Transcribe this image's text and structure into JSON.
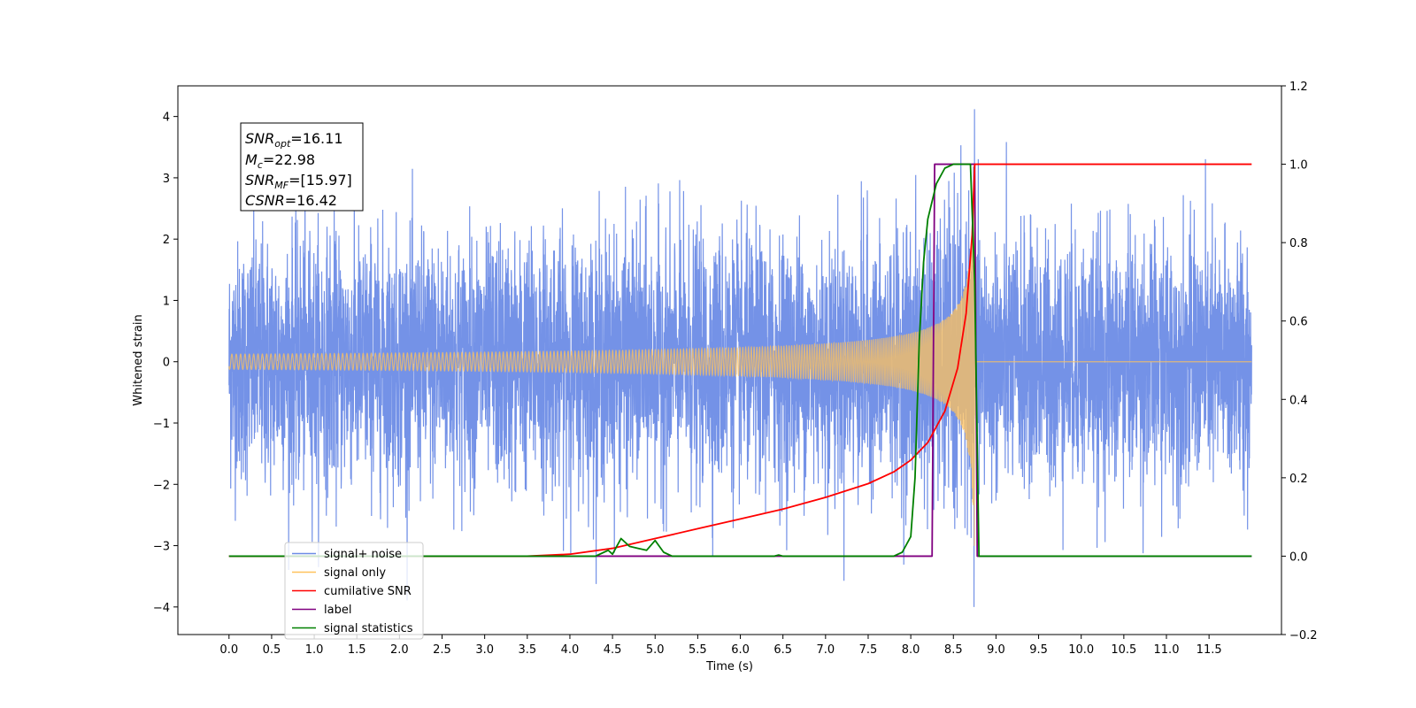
{
  "chart_data": {
    "type": "line",
    "xlabel": "Time (s)",
    "ylabel": "Whitened strain",
    "xlim": [
      -0.6,
      12.35
    ],
    "ylim_left": [
      -4.45,
      4.5
    ],
    "ylim_right": [
      -0.2,
      1.2
    ],
    "x_ticks": [
      0.0,
      0.5,
      1.0,
      1.5,
      2.0,
      2.5,
      3.0,
      3.5,
      4.0,
      4.5,
      5.0,
      5.5,
      6.0,
      6.5,
      7.0,
      7.5,
      8.0,
      8.5,
      9.0,
      9.5,
      10.0,
      10.5,
      11.0,
      11.5
    ],
    "x_tick_labels": [
      "0.0",
      "0.5",
      "1.0",
      "1.5",
      "2.0",
      "2.5",
      "3.0",
      "3.5",
      "4.0",
      "4.5",
      "5.0",
      "5.5",
      "6.0",
      "6.5",
      "7.0",
      "7.5",
      "8.0",
      "8.5",
      "9.0",
      "9.5",
      "10.0",
      "10.5",
      "11.0",
      "11.5"
    ],
    "y_left_ticks": [
      -4,
      -3,
      -2,
      -1,
      0,
      1,
      2,
      3,
      4
    ],
    "y_left_tick_labels": [
      "−4",
      "−3",
      "−2",
      "−1",
      "0",
      "1",
      "2",
      "3",
      "4"
    ],
    "y_right_ticks": [
      -0.2,
      0.0,
      0.2,
      0.4,
      0.6,
      0.8,
      1.0,
      1.2
    ],
    "y_right_tick_labels": [
      "−0.2",
      "0.0",
      "0.2",
      "0.4",
      "0.6",
      "0.8",
      "1.0",
      "1.2"
    ],
    "legend_position": "lower-left",
    "series": [
      {
        "name": "signal+ noise",
        "axis": "left",
        "color": "#6d8ce6",
        "x_range": [
          0.0,
          12.0
        ],
        "noise_std": 1.0,
        "y_extremes": [
          -4.0,
          4.12
        ]
      },
      {
        "name": "signal only",
        "axis": "left",
        "color": "#ffc25c",
        "x_range": [
          0.0,
          12.0
        ],
        "merger_time": 8.75,
        "peak_amplitude": 3.5
      },
      {
        "name": "cumilative SNR",
        "axis": "right",
        "color": "#ff0000",
        "x": [
          0.0,
          3.5,
          4.0,
          4.5,
          5.0,
          5.5,
          6.0,
          6.5,
          7.0,
          7.5,
          7.8,
          8.0,
          8.2,
          8.4,
          8.55,
          8.65,
          8.72,
          8.75,
          12.0
        ],
        "y": [
          0.0,
          0.0,
          0.005,
          0.02,
          0.045,
          0.07,
          0.095,
          0.12,
          0.15,
          0.185,
          0.215,
          0.245,
          0.29,
          0.37,
          0.48,
          0.62,
          0.82,
          1.0,
          1.0
        ]
      },
      {
        "name": "label",
        "axis": "right",
        "color": "#800080",
        "x": [
          0.0,
          8.25,
          8.28,
          8.75,
          8.78,
          12.0
        ],
        "y": [
          0.0,
          0.0,
          1.0,
          1.0,
          0.0,
          0.0
        ]
      },
      {
        "name": "signal statistics",
        "axis": "right",
        "color": "#008000",
        "x": [
          0.0,
          4.3,
          4.4,
          4.45,
          4.5,
          4.55,
          4.6,
          4.65,
          4.7,
          4.8,
          4.9,
          5.0,
          5.05,
          5.1,
          5.2,
          5.3,
          6.4,
          6.45,
          6.5,
          7.8,
          7.9,
          8.0,
          8.05,
          8.1,
          8.15,
          8.2,
          8.3,
          8.4,
          8.5,
          8.6,
          8.7,
          8.75,
          8.8,
          12.0
        ],
        "y": [
          0.0,
          0.0,
          0.01,
          0.015,
          0.005,
          0.025,
          0.045,
          0.035,
          0.025,
          0.02,
          0.015,
          0.04,
          0.025,
          0.01,
          0.0,
          0.0,
          0.0,
          0.003,
          0.0,
          0.0,
          0.01,
          0.05,
          0.2,
          0.55,
          0.75,
          0.86,
          0.95,
          0.99,
          1.0,
          1.0,
          1.0,
          0.7,
          0.0,
          0.0
        ]
      }
    ],
    "legend": [
      {
        "label": "signal+ noise",
        "color": "#6d8ce6"
      },
      {
        "label": "signal only",
        "color": "#ffc25c"
      },
      {
        "label": "cumilative SNR",
        "color": "#ff0000"
      },
      {
        "label": "label",
        "color": "#800080"
      },
      {
        "label": "signal statistics",
        "color": "#008000"
      }
    ],
    "annotation": {
      "lines": [
        {
          "sym": "SNR",
          "sub": "opt",
          "val": "=16.11"
        },
        {
          "sym": "M",
          "sub": "c",
          "val": "=22.98"
        },
        {
          "sym": "SNR",
          "sub": "MF",
          "val": "=[15.97]"
        },
        {
          "sym": "CSNR",
          "sub": "",
          "val": "=16.42"
        }
      ]
    }
  }
}
